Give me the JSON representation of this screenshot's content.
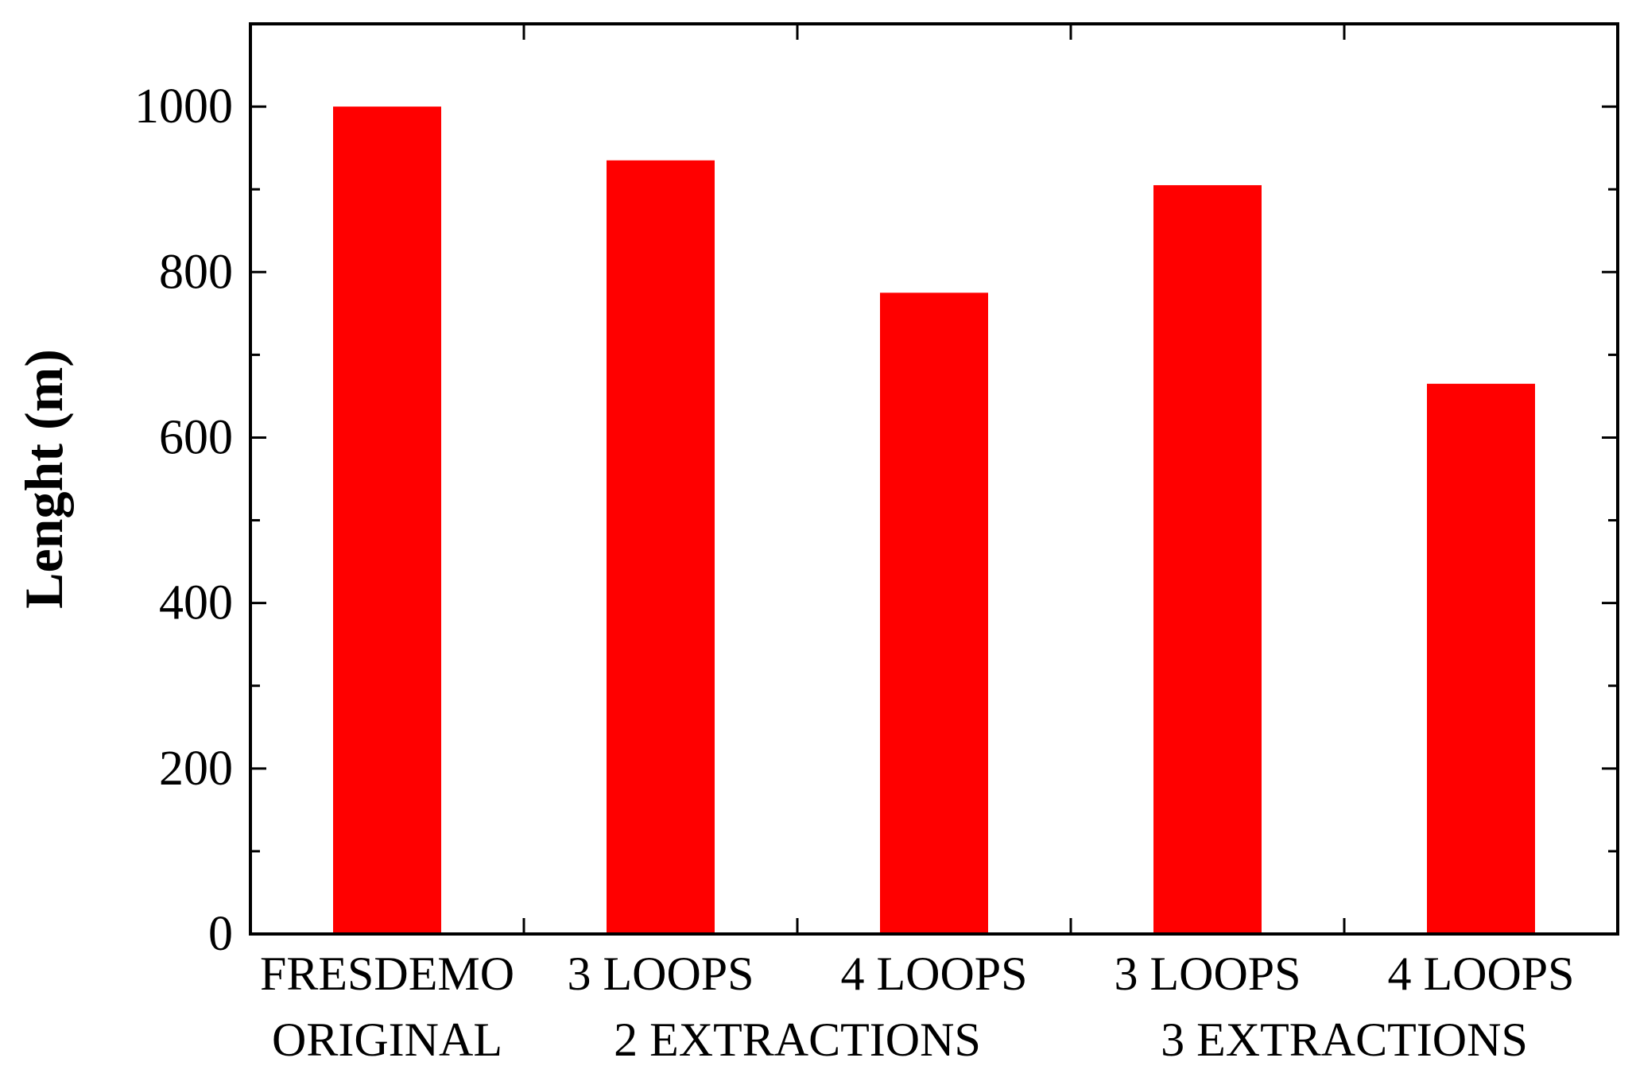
{
  "chart_data": {
    "type": "bar",
    "title": "",
    "xlabel": "",
    "ylabel": "Lenght (m)",
    "ylim": [
      0,
      1100
    ],
    "yticks": [
      0,
      200,
      400,
      600,
      800,
      1000
    ],
    "grid": false,
    "legend": "none",
    "bar_color": "#ff0000",
    "categories": [
      "FRESDEMO",
      "3 LOOPS",
      "4 LOOPS",
      "3 LOOPS",
      "4 LOOPS"
    ],
    "values": [
      1000,
      935,
      775,
      905,
      665
    ],
    "group_labels": [
      {
        "text": "ORIGINAL",
        "from": 0,
        "to": 0
      },
      {
        "text": "2 EXTRACTIONS",
        "from": 1,
        "to": 2
      },
      {
        "text": "3 EXTRACTIONS",
        "from": 3,
        "to": 4
      }
    ]
  }
}
